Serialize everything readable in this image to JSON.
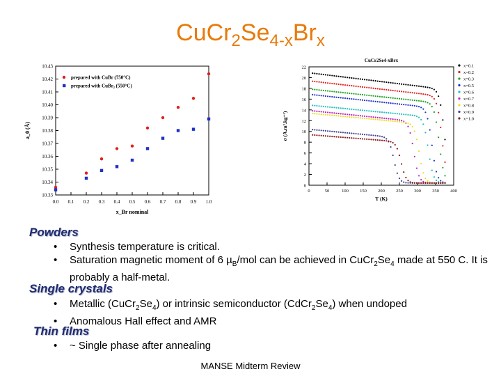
{
  "title": {
    "base": "Cu",
    "sub1": "",
    "cr": "Cr",
    "sub2": "2",
    "se": "Se",
    "sub3": "4-x",
    "br": "Br",
    "sub4": "x"
  },
  "chart_data": [
    {
      "type": "scatter",
      "title": "",
      "xlabel": "x_Br nominal",
      "ylabel": "a_0 (Å)",
      "xlim": [
        0.0,
        1.0
      ],
      "ylim": [
        10.33,
        10.43
      ],
      "x_ticks": [
        "0.0",
        "0.1",
        "0.2",
        "0.3",
        "0.4",
        "0.5",
        "0.6",
        "0.7",
        "0.8",
        "0.9",
        "1.0"
      ],
      "y_ticks": [
        "10.33",
        "10.34",
        "10.35",
        "10.36",
        "10.37",
        "10.38",
        "10.39",
        "10.40",
        "10.41",
        "10.42",
        "10.43"
      ],
      "legend_position": "top-left",
      "series": [
        {
          "name": "prepared with CuBr (750°C)",
          "color": "#e0201c",
          "marker": "circle",
          "x": [
            0.0,
            0.2,
            0.3,
            0.4,
            0.5,
            0.6,
            0.7,
            0.8,
            0.9,
            1.0
          ],
          "y": [
            10.336,
            10.347,
            10.358,
            10.366,
            10.368,
            10.382,
            10.39,
            10.398,
            10.405,
            10.424
          ]
        },
        {
          "name": "prepared with CuBr₂ (550°C)",
          "color": "#2030c8",
          "marker": "square",
          "x": [
            0.0,
            0.2,
            0.3,
            0.4,
            0.5,
            0.6,
            0.7,
            0.8,
            0.9,
            1.0
          ],
          "y": [
            10.334,
            10.343,
            10.349,
            10.352,
            10.357,
            10.366,
            10.374,
            10.38,
            10.381,
            10.389
          ]
        }
      ]
    },
    {
      "type": "line",
      "title": "CuCr2Se4-xBrx",
      "xlabel": "T (K)",
      "ylabel": "σ (A.m².kg⁻¹)",
      "xlim": [
        0,
        400
      ],
      "ylim": [
        0,
        22
      ],
      "x_ticks": [
        "0",
        "50",
        "100",
        "150",
        "200",
        "250",
        "300",
        "350",
        "400"
      ],
      "y_ticks": [
        "0",
        "2",
        "4",
        "6",
        "8",
        "10",
        "12",
        "14",
        "16",
        "18",
        "20",
        "22"
      ],
      "legend_position": "right",
      "series": [
        {
          "name": "x=0.1",
          "color": "#000000",
          "Ms": 20.5,
          "Tc": 375
        },
        {
          "name": "x=0.2",
          "color": "#e0201c",
          "Ms": 19.0,
          "Tc": 368
        },
        {
          "name": "x=0.3",
          "color": "#20a020",
          "Ms": 17.5,
          "Tc": 360
        },
        {
          "name": "x=0.5",
          "color": "#2030c8",
          "Ms": 16.5,
          "Tc": 340
        },
        {
          "name": "x=0.6",
          "color": "#20c0c0",
          "Ms": 14.5,
          "Tc": 330
        },
        {
          "name": "x=0.7",
          "color": "#c020c0",
          "Ms": 13.5,
          "Tc": 290
        },
        {
          "name": "x=0.8",
          "color": "#e8e020",
          "Ms": 13.0,
          "Tc": 305
        },
        {
          "name": "x=0.9",
          "color": "#404090",
          "Ms": 10.0,
          "Tc": 235
        },
        {
          "name": "x=1.0",
          "color": "#8b1a1a",
          "Ms": 9.0,
          "Tc": 255
        }
      ]
    }
  ],
  "sections": [
    {
      "heading": "Powders",
      "bullets": [
        "Synthesis temperature is critical.",
        "Saturation magnetic moment of 6  µB/mol can be achieved in CuCr2Se4 made at 550 C. It is probably a half-metal."
      ]
    },
    {
      "heading": "Single crystals",
      "bullets": [
        "Metallic (CuCr2Se4) or intrinsic semiconductor (CdCr2Se4) when undoped",
        "Anomalous Hall effect and AMR"
      ]
    },
    {
      "heading": "Thin films",
      "bullets": [
        "~ Single phase after annealing"
      ]
    }
  ],
  "footer": "MANSE Midterm Review"
}
